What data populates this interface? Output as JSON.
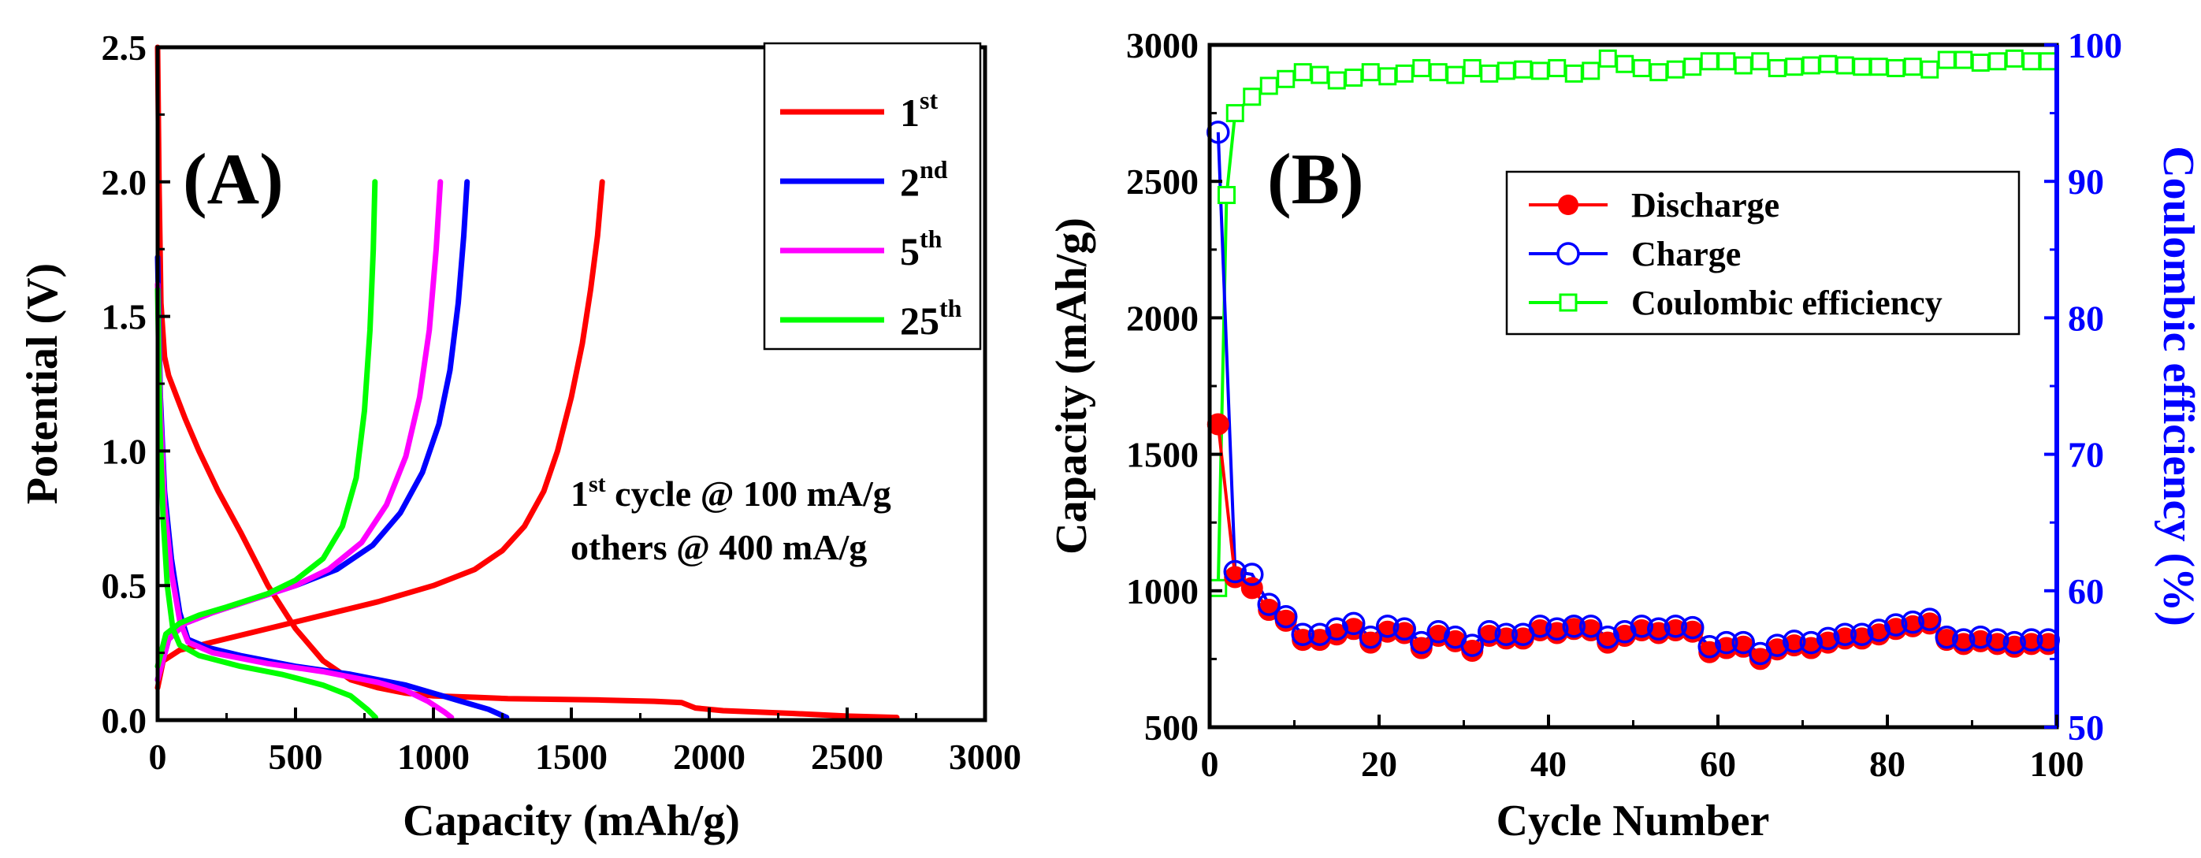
{
  "chart_data": [
    {
      "type": "line",
      "panel_label": "(A)",
      "xlabel": "Capacity (mAh/g)",
      "ylabel": "Potential (V)",
      "xlim": [
        0,
        3000
      ],
      "ylim": [
        0,
        2.5
      ],
      "xticks": [
        0,
        500,
        1000,
        1500,
        2000,
        2500,
        3000
      ],
      "yticks": [
        0.0,
        0.5,
        1.0,
        1.5,
        2.0,
        2.5
      ],
      "xtick_labels": [
        "0",
        "500",
        "1000",
        "1500",
        "2000",
        "2500",
        "3000"
      ],
      "ytick_labels": [
        "0.0",
        "0.5",
        "1.0",
        "1.5",
        "2.0",
        "2.5"
      ],
      "legend_position": "top-right",
      "annotation": {
        "line1_base": "1",
        "line1_sup": "st",
        "line1_rest": " cycle @ 100 mA/g",
        "line2": "others @ 400 mA/g"
      },
      "series": [
        {
          "name_base": "1",
          "name_sup": "st",
          "color": "#ff0000",
          "discharge": [
            [
              0,
              2.5
            ],
            [
              5,
              2.0
            ],
            [
              12,
              1.55
            ],
            [
              25,
              1.35
            ],
            [
              40,
              1.28
            ],
            [
              70,
              1.2
            ],
            [
              100,
              1.12
            ],
            [
              150,
              1.0
            ],
            [
              220,
              0.85
            ],
            [
              300,
              0.7
            ],
            [
              400,
              0.5
            ],
            [
              500,
              0.34
            ],
            [
              600,
              0.22
            ],
            [
              700,
              0.15
            ],
            [
              800,
              0.12
            ],
            [
              900,
              0.1
            ],
            [
              1000,
              0.09
            ],
            [
              1150,
              0.085
            ],
            [
              1270,
              0.08
            ],
            [
              1400,
              0.078
            ],
            [
              1600,
              0.075
            ],
            [
              1800,
              0.07
            ],
            [
              1900,
              0.065
            ],
            [
              1950,
              0.045
            ],
            [
              2050,
              0.035
            ],
            [
              2300,
              0.025
            ],
            [
              2500,
              0.015
            ],
            [
              2680,
              0.01
            ]
          ],
          "charge": [
            [
              0,
              0.12
            ],
            [
              20,
              0.22
            ],
            [
              80,
              0.26
            ],
            [
              200,
              0.29
            ],
            [
              400,
              0.34
            ],
            [
              600,
              0.39
            ],
            [
              800,
              0.44
            ],
            [
              1000,
              0.5
            ],
            [
              1150,
              0.56
            ],
            [
              1250,
              0.63
            ],
            [
              1330,
              0.72
            ],
            [
              1400,
              0.85
            ],
            [
              1450,
              1.0
            ],
            [
              1500,
              1.2
            ],
            [
              1540,
              1.4
            ],
            [
              1570,
              1.6
            ],
            [
              1595,
              1.8
            ],
            [
              1612,
              2.0
            ]
          ]
        },
        {
          "name_base": "2",
          "name_sup": "nd",
          "color": "#0000ff",
          "discharge": [
            [
              0,
              1.72
            ],
            [
              10,
              1.2
            ],
            [
              25,
              0.85
            ],
            [
              50,
              0.6
            ],
            [
              80,
              0.4
            ],
            [
              110,
              0.3
            ],
            [
              180,
              0.27
            ],
            [
              300,
              0.24
            ],
            [
              500,
              0.2
            ],
            [
              700,
              0.17
            ],
            [
              900,
              0.13
            ],
            [
              1000,
              0.1
            ],
            [
              1100,
              0.07
            ],
            [
              1200,
              0.04
            ],
            [
              1265,
              0.01
            ]
          ],
          "charge": [
            [
              0,
              0.15
            ],
            [
              40,
              0.3
            ],
            [
              100,
              0.36
            ],
            [
              200,
              0.4
            ],
            [
              350,
              0.45
            ],
            [
              500,
              0.5
            ],
            [
              650,
              0.56
            ],
            [
              780,
              0.65
            ],
            [
              880,
              0.77
            ],
            [
              960,
              0.92
            ],
            [
              1020,
              1.1
            ],
            [
              1060,
              1.3
            ],
            [
              1090,
              1.55
            ],
            [
              1110,
              1.8
            ],
            [
              1122,
              2.0
            ]
          ]
        },
        {
          "name_base": "5",
          "name_sup": "th",
          "color": "#ff00ff",
          "discharge": [
            [
              0,
              1.62
            ],
            [
              10,
              1.15
            ],
            [
              25,
              0.8
            ],
            [
              50,
              0.55
            ],
            [
              80,
              0.37
            ],
            [
              110,
              0.29
            ],
            [
              200,
              0.25
            ],
            [
              400,
              0.21
            ],
            [
              600,
              0.18
            ],
            [
              800,
              0.14
            ],
            [
              900,
              0.11
            ],
            [
              980,
              0.07
            ],
            [
              1040,
              0.03
            ],
            [
              1065,
              0.01
            ]
          ],
          "charge": [
            [
              0,
              0.15
            ],
            [
              40,
              0.3
            ],
            [
              100,
              0.36
            ],
            [
              200,
              0.4
            ],
            [
              350,
              0.45
            ],
            [
              500,
              0.5
            ],
            [
              620,
              0.56
            ],
            [
              740,
              0.66
            ],
            [
              830,
              0.8
            ],
            [
              900,
              0.98
            ],
            [
              950,
              1.2
            ],
            [
              985,
              1.45
            ],
            [
              1010,
              1.75
            ],
            [
              1025,
              2.0
            ]
          ]
        },
        {
          "name_base": "25",
          "name_sup": "th",
          "color": "#00ff00",
          "discharge": [
            [
              0,
              1.6
            ],
            [
              8,
              1.1
            ],
            [
              20,
              0.75
            ],
            [
              35,
              0.5
            ],
            [
              55,
              0.34
            ],
            [
              80,
              0.28
            ],
            [
              150,
              0.24
            ],
            [
              300,
              0.2
            ],
            [
              450,
              0.17
            ],
            [
              600,
              0.13
            ],
            [
              700,
              0.09
            ],
            [
              760,
              0.04
            ],
            [
              790,
              0.01
            ]
          ],
          "charge": [
            [
              0,
              0.2
            ],
            [
              30,
              0.32
            ],
            [
              80,
              0.36
            ],
            [
              150,
              0.39
            ],
            [
              250,
              0.42
            ],
            [
              400,
              0.47
            ],
            [
              500,
              0.52
            ],
            [
              600,
              0.6
            ],
            [
              670,
              0.72
            ],
            [
              720,
              0.9
            ],
            [
              750,
              1.15
            ],
            [
              770,
              1.45
            ],
            [
              782,
              1.75
            ],
            [
              788,
              2.0
            ]
          ]
        }
      ]
    },
    {
      "type": "scatter",
      "panel_label": "(B)",
      "xlabel": "Cycle Number",
      "ylabel": "Capacity (mAh/g)",
      "y2label": "Coulombic efficiency (%)",
      "xlim": [
        0,
        100
      ],
      "ylim": [
        500,
        3000
      ],
      "y2lim": [
        50,
        100
      ],
      "xticks": [
        0,
        20,
        40,
        60,
        80,
        100
      ],
      "yticks": [
        500,
        1000,
        1500,
        2000,
        2500,
        3000
      ],
      "y2ticks": [
        50,
        60,
        70,
        80,
        90,
        100
      ],
      "xtick_labels": [
        "0",
        "20",
        "40",
        "60",
        "80",
        "100"
      ],
      "ytick_labels": [
        "500",
        "1000",
        "1500",
        "2000",
        "2500",
        "3000"
      ],
      "y2tick_labels": [
        "50",
        "60",
        "70",
        "80",
        "90",
        "100"
      ],
      "legend_position": "top-right",
      "cycles": [
        1,
        3,
        5,
        7,
        9,
        11,
        13,
        15,
        17,
        19,
        21,
        23,
        25,
        27,
        29,
        31,
        33,
        35,
        37,
        39,
        41,
        43,
        45,
        47,
        49,
        51,
        53,
        55,
        57,
        59,
        61,
        63,
        65,
        67,
        69,
        71,
        73,
        75,
        77,
        79,
        81,
        83,
        85,
        87,
        89,
        91,
        93,
        95,
        97,
        99
      ],
      "series": [
        {
          "name": "Discharge",
          "marker": "filled-circle",
          "color": "#ff0000",
          "axis": "left",
          "values": [
            1610,
            1050,
            1010,
            930,
            890,
            820,
            820,
            840,
            860,
            810,
            850,
            845,
            790,
            835,
            815,
            780,
            835,
            825,
            825,
            855,
            845,
            860,
            855,
            810,
            835,
            855,
            845,
            855,
            850,
            775,
            790,
            795,
            750,
            785,
            800,
            790,
            810,
            825,
            825,
            840,
            860,
            870,
            880,
            820,
            805,
            815,
            805,
            795,
            805,
            805
          ]
        },
        {
          "name": "Charge",
          "marker": "open-circle",
          "color": "#0000ff",
          "axis": "left",
          "values": [
            2680,
            1070,
            1060,
            950,
            905,
            840,
            840,
            860,
            880,
            830,
            870,
            860,
            810,
            850,
            830,
            800,
            850,
            840,
            840,
            870,
            860,
            870,
            870,
            830,
            850,
            870,
            860,
            870,
            865,
            795,
            810,
            810,
            770,
            800,
            815,
            810,
            825,
            840,
            840,
            855,
            875,
            885,
            895,
            830,
            820,
            830,
            820,
            810,
            820,
            820
          ]
        },
        {
          "name": "Coulombic efficiency",
          "marker": "open-square",
          "color": "#00ff00",
          "axis": "right",
          "x": [
            1,
            2,
            3,
            5,
            7,
            9,
            11,
            13,
            15,
            17,
            19,
            21,
            23,
            25,
            27,
            29,
            31,
            33,
            35,
            37,
            39,
            41,
            43,
            45,
            47,
            49,
            51,
            53,
            55,
            57,
            59,
            61,
            63,
            65,
            67,
            69,
            71,
            73,
            75,
            77,
            79,
            81,
            83,
            85,
            87,
            89,
            91,
            93,
            95,
            97,
            99
          ],
          "values": [
            60.2,
            89,
            95,
            96.2,
            97,
            97.5,
            98,
            97.8,
            97.4,
            97.6,
            98,
            97.7,
            97.9,
            98.3,
            98,
            97.8,
            98.3,
            97.9,
            98.1,
            98.2,
            98.1,
            98.3,
            97.9,
            98.1,
            99,
            98.6,
            98.3,
            98,
            98.2,
            98.4,
            98.8,
            98.8,
            98.5,
            98.8,
            98.3,
            98.4,
            98.5,
            98.6,
            98.5,
            98.4,
            98.4,
            98.3,
            98.4,
            98.2,
            98.9,
            98.9,
            98.7,
            98.8,
            99,
            98.8,
            98.8
          ]
        }
      ]
    }
  ]
}
